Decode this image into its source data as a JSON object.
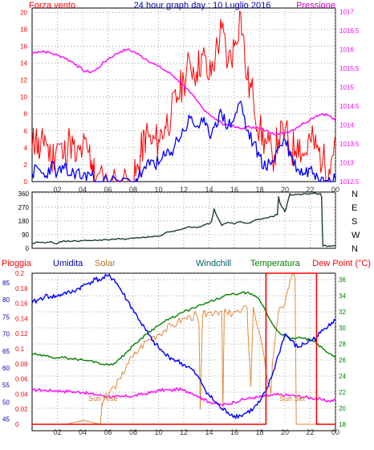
{
  "header": {
    "left_label": "Forza vento",
    "title": "24 hour graph day : 10 Luglio 2016",
    "right_label": "Pressione"
  },
  "compass": [
    "N",
    "W",
    "S",
    "E",
    "N"
  ],
  "bottom_header": {
    "pioggia": "Pioggia",
    "umidita": "Umidita",
    "solar": "Solar",
    "windchill": "Windchill",
    "temperatura": "Temperatura",
    "dewpoint": "Dew Point (°C)"
  },
  "annotations": {
    "sunrise": "Sun Rise",
    "sunset": "Sun Set"
  },
  "colors": {
    "wind": "#ff0000",
    "wind_avg": "#0000ff",
    "pressure": "#ff00ff",
    "direction": "#1e3c3c",
    "humidity": "#0000ff",
    "solar": "#e08a3c",
    "temperature": "#008000",
    "dewpoint": "#ff00ff",
    "rain": "#ff0000",
    "pioggia": "#ff0000",
    "umidita": "#0000aa",
    "solar_label": "#b07020",
    "windchill": "#006060",
    "temperatura": "#008000",
    "dewpoint_label": "#ff0000"
  },
  "chart_data": [
    {
      "type": "line",
      "x_ticks": [
        "02",
        "04",
        "06",
        "08",
        "10",
        "12",
        "14",
        "16",
        "18",
        "20",
        "22",
        "00"
      ],
      "y_left_ticks": [
        0,
        2,
        4,
        6,
        8,
        10,
        12,
        14,
        16,
        18,
        20
      ],
      "y_left_range": [
        0,
        20.5
      ],
      "y_right_ticks": [
        1012.5,
        1013,
        1013.5,
        1014,
        1014.5,
        1015,
        1015.5,
        1016,
        1016.5,
        1017
      ],
      "y_right_range": [
        1012.5,
        1017.1
      ],
      "x_range_hours": [
        0,
        24
      ],
      "grid": true,
      "series": [
        {
          "name": "Forza vento",
          "axis": "left",
          "x": [
            0,
            0.3,
            0.6,
            1,
            1.5,
            2,
            2.5,
            3,
            3.5,
            4,
            4.5,
            4.8,
            5,
            6,
            7,
            8,
            8.4,
            8.7,
            9,
            9.5,
            10,
            10.5,
            11,
            11.5,
            12,
            12.5,
            13,
            13.5,
            14,
            14.5,
            15,
            15.5,
            16,
            16.5,
            17,
            17.5,
            18,
            18.5,
            19,
            19.5,
            20,
            20.5,
            21,
            21.5,
            22,
            22.5,
            23,
            23.5,
            24
          ],
          "values": [
            4,
            5.5,
            3,
            5.5,
            2.5,
            4.5,
            3,
            5,
            2.5,
            4,
            3.5,
            2,
            0,
            0,
            0,
            0,
            1.5,
            4,
            5.5,
            4.5,
            5,
            6.5,
            8,
            10,
            12,
            14,
            13,
            15,
            12,
            15,
            18,
            14,
            16,
            20,
            12,
            10,
            6,
            4.5,
            3,
            5,
            6,
            3.5,
            5,
            3,
            5,
            4,
            2.5,
            1.5,
            5.5
          ]
        },
        {
          "name": "",
          "axis": "left",
          "x": [
            0,
            0.5,
            1,
            1.5,
            2,
            2.5,
            3,
            3.5,
            4,
            4.5,
            5,
            6,
            7,
            8,
            8.4,
            9,
            9.5,
            10,
            10.5,
            11,
            11.5,
            12,
            12.5,
            13,
            13.5,
            14,
            14.5,
            15,
            15.5,
            16,
            16.5,
            17,
            17.5,
            18,
            18.5,
            19,
            19.5,
            20,
            20.5,
            21,
            21.5,
            22,
            22.5,
            23,
            23.5,
            24
          ],
          "values": [
            1,
            1.5,
            0.5,
            2,
            1,
            1.5,
            0.8,
            1.2,
            0.5,
            1,
            0,
            0,
            0,
            0,
            0.5,
            1.5,
            2.5,
            2,
            3,
            3.5,
            5,
            6,
            7.5,
            6.5,
            7,
            5.5,
            7,
            8,
            6.5,
            7.5,
            9.5,
            6,
            4.5,
            3,
            1.5,
            2.5,
            4,
            5,
            3,
            1.5,
            1,
            1.5,
            1,
            0.5,
            0.5,
            0.2
          ]
        },
        {
          "name": "Pressione",
          "axis": "right",
          "x": [
            0,
            0.5,
            1,
            1.5,
            2,
            2.5,
            3,
            3.5,
            4,
            4.5,
            5,
            5.5,
            6,
            6.5,
            7,
            7.5,
            8,
            8.5,
            9,
            9.5,
            10,
            10.5,
            11,
            11.5,
            12,
            12.5,
            13,
            13.5,
            14,
            14.5,
            15,
            15.5,
            16,
            16.5,
            17,
            17.5,
            18,
            18.5,
            19,
            19.5,
            20,
            20.5,
            21,
            21.5,
            22,
            22.5,
            23,
            23.5,
            24
          ],
          "values": [
            1015.9,
            1015.95,
            1015.95,
            1015.9,
            1015.85,
            1015.8,
            1015.7,
            1015.6,
            1015.45,
            1015.4,
            1015.45,
            1015.6,
            1015.75,
            1015.85,
            1015.95,
            1016,
            1015.95,
            1015.85,
            1015.75,
            1015.65,
            1015.55,
            1015.45,
            1015.35,
            1015.2,
            1015.05,
            1014.85,
            1014.65,
            1014.45,
            1014.3,
            1014.15,
            1014.05,
            1014,
            1013.95,
            1013.9,
            1013.95,
            1013.95,
            1013.9,
            1013.85,
            1013.8,
            1013.75,
            1013.8,
            1013.85,
            1013.95,
            1014.05,
            1014.15,
            1014.25,
            1014.3,
            1014.25,
            1014.1
          ]
        }
      ]
    },
    {
      "type": "line",
      "x_range_hours": [
        0,
        24
      ],
      "y_ticks": [
        0,
        90,
        180,
        270,
        360
      ],
      "y_range": [
        0,
        370
      ],
      "grid": true,
      "series": [
        {
          "name": "",
          "x": [
            0,
            0.5,
            1,
            1.5,
            2,
            2.5,
            3,
            3.5,
            4,
            4.5,
            5,
            5.5,
            6,
            6.5,
            7,
            7.5,
            8,
            8.5,
            9,
            9.5,
            10,
            10.5,
            11,
            11.5,
            12,
            12.5,
            13,
            13.5,
            14,
            14.2,
            14.4,
            14.7,
            15,
            15.5,
            16,
            16.5,
            17,
            17.5,
            18,
            18.5,
            19,
            19.4,
            19.5,
            19.6,
            20,
            20.3,
            20.4,
            20.5,
            21,
            21.5,
            22,
            22.5,
            22.8,
            22.9,
            23,
            23.5,
            24
          ],
          "values": [
            30,
            40,
            35,
            45,
            30,
            50,
            45,
            48,
            50,
            52,
            55,
            52,
            55,
            58,
            60,
            62,
            65,
            68,
            70,
            75,
            80,
            100,
            110,
            120,
            130,
            140,
            135,
            150,
            160,
            180,
            260,
            200,
            150,
            170,
            160,
            175,
            165,
            180,
            190,
            200,
            210,
            220,
            340,
            300,
            240,
            330,
            360,
            350,
            355,
            360,
            360,
            360,
            360,
            340,
            15,
            15,
            15
          ]
        }
      ]
    },
    {
      "type": "line",
      "x_ticks": [
        "02",
        "04",
        "06",
        "08",
        "10",
        "12",
        "14",
        "16",
        "18",
        "20",
        "22",
        "00"
      ],
      "x_range_hours": [
        0,
        24
      ],
      "y_humidity_ticks": [
        45,
        50,
        55,
        60,
        65,
        70,
        75,
        80,
        85
      ],
      "y_humidity_range": [
        43.5,
        87.8
      ],
      "y_rain_ticks": [
        0,
        0.02,
        0.04,
        0.06,
        0.08,
        0.1,
        0.12,
        0.14,
        0.16,
        0.18,
        0.2
      ],
      "y_rain_range": [
        0,
        0.2
      ],
      "y_temp_ticks": [
        18,
        20,
        22,
        24,
        26,
        28,
        30,
        32,
        34,
        36
      ],
      "y_temp_range": [
        18,
        36.8
      ],
      "grid": true,
      "series": [
        {
          "name": "Umidita",
          "axis": "humidity",
          "x": [
            0,
            0.5,
            1,
            1.5,
            2,
            2.5,
            3,
            3.5,
            4,
            4.5,
            5,
            5.5,
            6,
            6.5,
            7,
            7.5,
            8,
            8.5,
            9,
            9.5,
            10,
            10.5,
            11,
            11.5,
            12,
            12.5,
            13,
            13.5,
            14,
            14.5,
            15,
            15.5,
            16,
            16.5,
            17,
            17.5,
            18,
            18.5,
            19,
            19.5,
            20,
            20.5,
            21,
            21.5,
            22,
            22.5,
            23,
            23.5,
            24
          ],
          "values": [
            79,
            80,
            81,
            81,
            81,
            82,
            82,
            83,
            84,
            85,
            86,
            86,
            87,
            86,
            83,
            80,
            77,
            74,
            71,
            68,
            66,
            64,
            63,
            62,
            61,
            60,
            58,
            55,
            52,
            50,
            48,
            47,
            46,
            46,
            47,
            48,
            50,
            53,
            58,
            64,
            70,
            68,
            66,
            67,
            68,
            69,
            71,
            73,
            74
          ]
        },
        {
          "name": "Solar",
          "axis": "rain",
          "x": [
            0,
            5.4,
            5.5,
            5.6,
            6,
            6.5,
            7,
            7.5,
            8,
            8.5,
            9,
            9.5,
            10,
            10.5,
            11,
            11.5,
            12,
            12.5,
            13,
            13.2,
            13.3,
            13.5,
            14,
            14.5,
            15,
            15.1,
            15.2,
            15.5,
            16,
            16.5,
            17,
            17.3,
            17.5,
            18,
            18.5,
            18.9,
            19,
            19.5,
            20,
            20.3,
            20.6,
            20.8,
            20.9,
            21,
            21.5,
            22,
            22.5,
            23,
            23.5,
            24
          ],
          "values": [
            0,
            0,
            0.02,
            0.03,
            0.04,
            0.05,
            0.06,
            0.08,
            0.09,
            0.1,
            0.11,
            0.115,
            0.12,
            0.125,
            0.13,
            0.135,
            0.14,
            0.142,
            0.145,
            0.13,
            0.02,
            0.145,
            0.148,
            0.15,
            0.15,
            0.02,
            0.15,
            0.145,
            0.15,
            0.148,
            0.155,
            0.05,
            0.155,
            0.12,
            0.07,
            0.04,
            0.08,
            0.15,
            0.16,
            0.18,
            0.2,
            0.19,
            0,
            0,
            0,
            0,
            0,
            0,
            0,
            0
          ]
        },
        {
          "name": "Temperatura",
          "axis": "temp",
          "x": [
            0,
            0.5,
            1,
            1.5,
            2,
            2.5,
            3,
            3.5,
            4,
            4.5,
            5,
            5.5,
            6,
            6.5,
            7,
            7.5,
            8,
            8.5,
            9,
            9.5,
            10,
            10.5,
            11,
            11.5,
            12,
            12.5,
            13,
            13.5,
            14,
            14.5,
            15,
            15.5,
            16,
            16.5,
            17,
            17.5,
            18,
            18.5,
            19,
            19.5,
            20,
            20.5,
            21,
            21.5,
            22,
            22.5,
            23,
            23.5,
            24
          ],
          "values": [
            26.8,
            26.6,
            26.5,
            26.4,
            26.3,
            26.3,
            26.2,
            26.1,
            26,
            25.9,
            25.8,
            25.5,
            25.4,
            25.6,
            26.2,
            27,
            27.8,
            28.5,
            29.2,
            29.8,
            30.3,
            30.8,
            31.2,
            31.6,
            32,
            32.3,
            32.6,
            32.9,
            33.2,
            33.5,
            33.8,
            34.1,
            34.2,
            34.3,
            34.4,
            34,
            33.5,
            32,
            30.5,
            29.5,
            29,
            28.6,
            28.8,
            28.7,
            28.5,
            28.1,
            27.4,
            26.8,
            26.3
          ]
        },
        {
          "name": "Dew Point (°C)",
          "axis": "temp",
          "x": [
            0,
            0.5,
            1,
            1.5,
            2,
            2.5,
            3,
            3.5,
            4,
            4.5,
            5,
            5.5,
            6,
            6.5,
            7,
            7.5,
            8,
            8.5,
            9,
            9.5,
            10,
            10.5,
            11,
            11.5,
            12,
            12.5,
            13,
            13.5,
            14,
            14.5,
            15,
            15.5,
            16,
            16.5,
            17,
            17.5,
            18,
            18.5,
            19,
            19.5,
            20,
            20.5,
            21,
            21.5,
            22,
            22.5,
            23,
            23.5,
            24
          ],
          "values": [
            22.2,
            22.3,
            22.2,
            22.2,
            22.2,
            22.1,
            22.1,
            22,
            22,
            21.8,
            21.7,
            21.6,
            21.5,
            21.4,
            21.4,
            21.5,
            21.5,
            21.7,
            21.8,
            22,
            22.2,
            22.3,
            22.2,
            22.4,
            22.2,
            22,
            21.6,
            21.2,
            20.8,
            20.6,
            20.4,
            20.5,
            20.8,
            21,
            21.2,
            21.3,
            21.4,
            21.5,
            21.6,
            21.7,
            21.6,
            21.6,
            21.5,
            21.4,
            21.3,
            21.2,
            21,
            20.9,
            21
          ]
        },
        {
          "name": "Pioggia",
          "axis": "rain",
          "x": [
            0,
            18.5,
            18.5,
            22.5,
            22.5,
            24
          ],
          "values": [
            0,
            0,
            0.2,
            0.2,
            0,
            0
          ]
        }
      ]
    }
  ]
}
